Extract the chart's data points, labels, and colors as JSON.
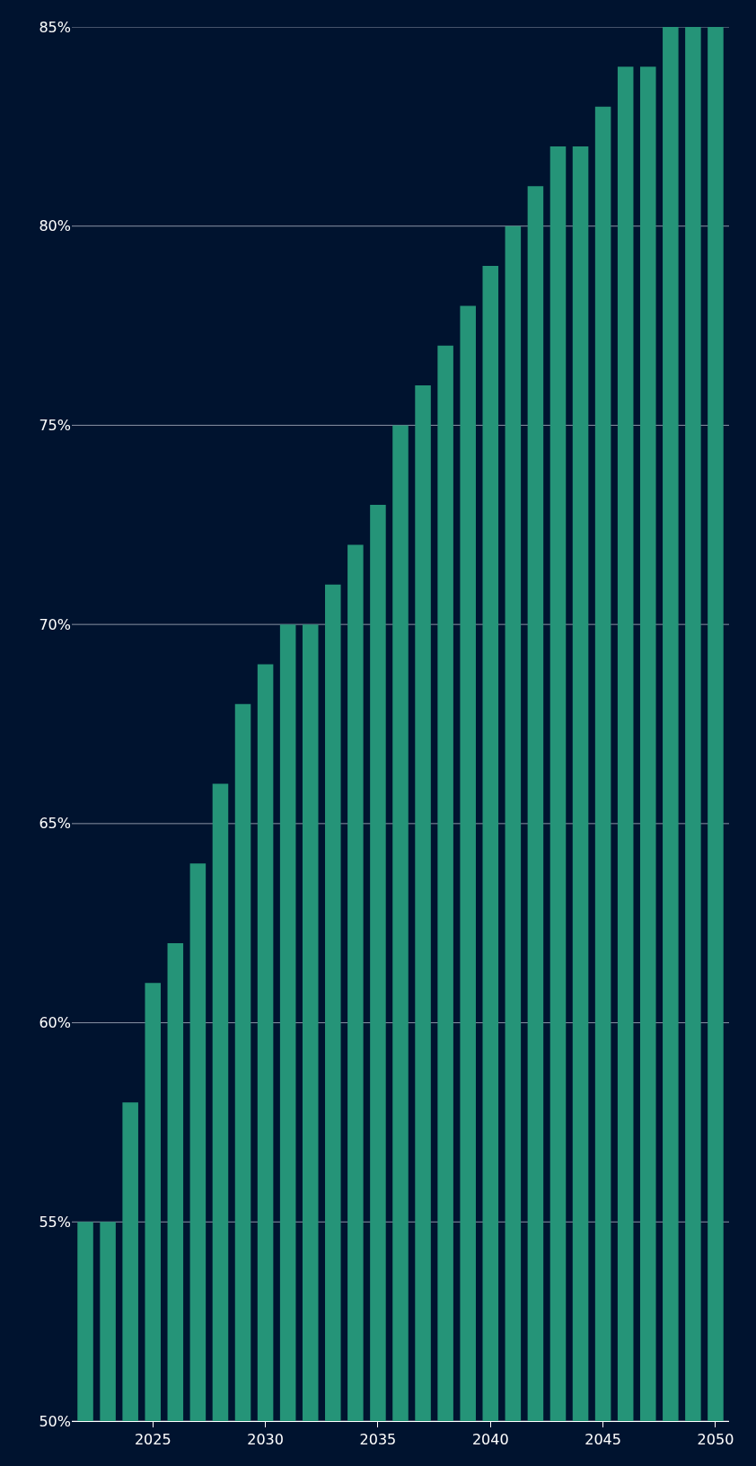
{
  "chart_data": {
    "type": "bar",
    "x": [
      2022,
      2023,
      2024,
      2025,
      2026,
      2027,
      2028,
      2029,
      2030,
      2031,
      2032,
      2033,
      2034,
      2035,
      2036,
      2037,
      2038,
      2039,
      2040,
      2041,
      2042,
      2043,
      2044,
      2045,
      2046,
      2047,
      2048,
      2049,
      2050
    ],
    "values": [
      55,
      55,
      58,
      61,
      62,
      64,
      66,
      68,
      69,
      70,
      70,
      71,
      72,
      73,
      75,
      76,
      77,
      78,
      79,
      80,
      81,
      82,
      82,
      83,
      84,
      84,
      85,
      85,
      85
    ],
    "color": "#259478",
    "xlim": [
      2021.4,
      2050.6
    ],
    "xticks": [
      2025,
      2030,
      2035,
      2040,
      2045,
      2050
    ],
    "ylim": [
      50,
      85
    ],
    "yticks": [
      {
        "value": 50,
        "label": "50%"
      },
      {
        "value": 55,
        "label": "55%"
      },
      {
        "value": 60,
        "label": "60%"
      },
      {
        "value": 65,
        "label": "65%"
      },
      {
        "value": 70,
        "label": "70%"
      },
      {
        "value": 75,
        "label": "75%"
      },
      {
        "value": 80,
        "label": "80%"
      },
      {
        "value": 85,
        "label": "85%"
      }
    ],
    "grid": "y"
  }
}
